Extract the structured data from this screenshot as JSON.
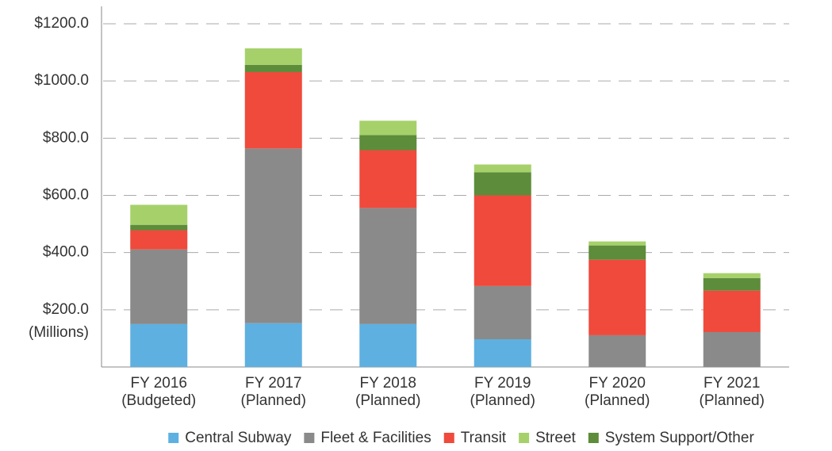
{
  "chart_data": {
    "type": "stacked_bar",
    "y_label": "(Millions)",
    "categories": [
      [
        "FY 2016",
        "(Budgeted)"
      ],
      [
        "FY 2017",
        "(Planned)"
      ],
      [
        "FY 2018",
        "(Planned)"
      ],
      [
        "FY 2019",
        "(Planned)"
      ],
      [
        "FY 2020",
        "(Planned)"
      ],
      [
        "FY 2021",
        "(Planned)"
      ]
    ],
    "series": [
      {
        "name": "Central Subway",
        "color": "#5eb0e0",
        "values": [
          150,
          153,
          150,
          97,
          0,
          0
        ]
      },
      {
        "name": "Fleet & Facilities",
        "color": "#8a8a8a",
        "values": [
          261,
          611,
          406,
          186,
          111,
          122
        ]
      },
      {
        "name": "Transit",
        "color": "#ef4a3c",
        "values": [
          67,
          267,
          202,
          317,
          264,
          145
        ]
      },
      {
        "name": "Street",
        "color": "#a6d16a",
        "values": [
          70,
          58,
          50,
          27,
          14,
          17
        ]
      },
      {
        "name": "System Support/Other",
        "color": "#5d8c3a",
        "values": [
          19,
          25,
          53,
          81,
          50,
          44
        ]
      }
    ],
    "ylim": [
      0,
      1200
    ],
    "yticks": [
      {
        "value": 200,
        "label": "$200.0"
      },
      {
        "value": 400,
        "label": "$400.0"
      },
      {
        "value": 600,
        "label": "$600.0"
      },
      {
        "value": 800,
        "label": "$800.0"
      },
      {
        "value": 1000,
        "label": "$1000.0"
      },
      {
        "value": 1200,
        "label": "$1200.0"
      }
    ],
    "grid": true
  }
}
